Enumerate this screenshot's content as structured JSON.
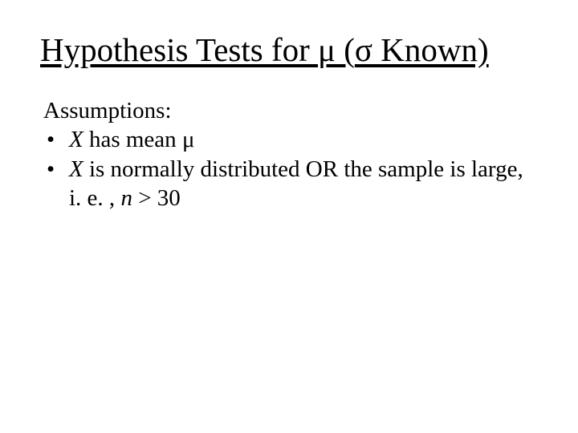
{
  "title": {
    "prefix": "Hypothesis Tests for ",
    "mu": "μ",
    "open_paren": " (",
    "sigma": "σ",
    "suffix": " Known)"
  },
  "assumptions_label": "Assumptions:",
  "bullets": [
    {
      "marker": "•",
      "var1": "X",
      "text1": " has mean ",
      "mu": "μ",
      "text2": ""
    },
    {
      "marker": "•",
      "var1": "X",
      "text1": " is normally distributed OR the sample is large, i. e. , ",
      "var2": "n",
      "text2": " > 30"
    }
  ],
  "styling": {
    "background_color": "#ffffff",
    "text_color": "#000000",
    "title_fontsize": 41,
    "body_fontsize": 29,
    "font_family": "Times New Roman"
  }
}
